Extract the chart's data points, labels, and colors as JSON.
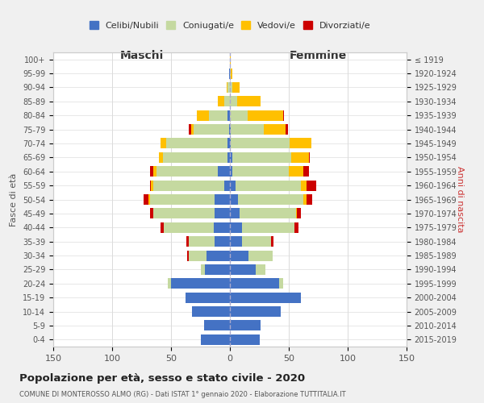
{
  "age_groups": [
    "0-4",
    "5-9",
    "10-14",
    "15-19",
    "20-24",
    "25-29",
    "30-34",
    "35-39",
    "40-44",
    "45-49",
    "50-54",
    "55-59",
    "60-64",
    "65-69",
    "70-74",
    "75-79",
    "80-84",
    "85-89",
    "90-94",
    "95-99",
    "100+"
  ],
  "birth_years": [
    "2015-2019",
    "2010-2014",
    "2005-2009",
    "2000-2004",
    "1995-1999",
    "1990-1994",
    "1985-1989",
    "1980-1984",
    "1975-1979",
    "1970-1974",
    "1965-1969",
    "1960-1964",
    "1955-1959",
    "1950-1954",
    "1945-1949",
    "1940-1944",
    "1935-1939",
    "1930-1934",
    "1925-1929",
    "1920-1924",
    "≤ 1919"
  ],
  "males": {
    "celibi": [
      25,
      22,
      32,
      38,
      50,
      21,
      20,
      13,
      14,
      13,
      13,
      5,
      10,
      2,
      2,
      1,
      2,
      0,
      0,
      1,
      0
    ],
    "coniugati": [
      0,
      0,
      0,
      0,
      3,
      4,
      15,
      22,
      42,
      52,
      55,
      60,
      52,
      55,
      52,
      30,
      16,
      5,
      2,
      0,
      0
    ],
    "vedovi": [
      0,
      0,
      0,
      0,
      0,
      0,
      0,
      0,
      0,
      0,
      1,
      2,
      3,
      3,
      5,
      2,
      10,
      5,
      1,
      0,
      0
    ],
    "divorziati": [
      0,
      0,
      0,
      0,
      0,
      0,
      1,
      2,
      3,
      3,
      4,
      1,
      3,
      0,
      0,
      2,
      0,
      0,
      0,
      0,
      0
    ]
  },
  "females": {
    "nubili": [
      25,
      26,
      43,
      60,
      42,
      22,
      16,
      10,
      10,
      8,
      7,
      5,
      2,
      2,
      1,
      1,
      0,
      0,
      0,
      0,
      0
    ],
    "coniugate": [
      0,
      0,
      0,
      0,
      3,
      8,
      20,
      25,
      45,
      48,
      55,
      55,
      48,
      50,
      50,
      28,
      15,
      6,
      2,
      1,
      0
    ],
    "vedove": [
      0,
      0,
      0,
      0,
      0,
      0,
      0,
      0,
      0,
      1,
      3,
      5,
      12,
      15,
      18,
      18,
      30,
      20,
      6,
      1,
      1
    ],
    "divorziate": [
      0,
      0,
      0,
      0,
      0,
      0,
      0,
      2,
      3,
      3,
      5,
      8,
      5,
      1,
      0,
      2,
      1,
      0,
      0,
      0,
      0
    ]
  },
  "colors": {
    "celibi": "#4472c4",
    "coniugati": "#c5d9a0",
    "vedovi": "#ffc000",
    "divorziati": "#cc0000"
  },
  "title": "Popolazione per età, sesso e stato civile - 2020",
  "subtitle": "COMUNE DI MONTEROSSO ALMO (RG) - Dati ISTAT 1° gennaio 2020 - Elaborazione TUTTITALIA.IT",
  "xlabel_left": "Maschi",
  "xlabel_right": "Femmine",
  "ylabel_left": "Fasce di età",
  "ylabel_right": "Anni di nascita",
  "xlim": 150,
  "bg_color": "#f0f0f0",
  "plot_bg": "#ffffff",
  "legend_labels": [
    "Celibi/Nubili",
    "Coniugati/e",
    "Vedovi/e",
    "Divorziati/e"
  ]
}
